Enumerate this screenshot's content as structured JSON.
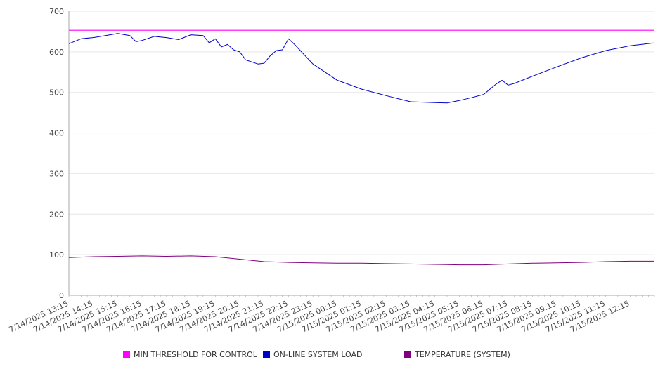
{
  "chart_data": {
    "type": "line",
    "title": "",
    "xlabel": "",
    "ylabel": "",
    "ylim": [
      0,
      700
    ],
    "y_ticks": [
      "0",
      "100",
      "200",
      "300",
      "400",
      "500",
      "600",
      "700"
    ],
    "x_start": "7/14/2025 13:15",
    "x_end": "7/15/2025 13:15",
    "x_tick_labels": [
      "7/14/2025 13:15",
      "7/14/2025 14:15",
      "7/14/2025 15:15",
      "7/14/2025 16:15",
      "7/14/2025 17:15",
      "7/14/2025 18:15",
      "7/14/2025 19:15",
      "7/14/2025 20:15",
      "7/14/2025 21:15",
      "7/14/2025 22:15",
      "7/14/2025 23:15",
      "7/15/2025 00:15",
      "7/15/2025 01:15",
      "7/15/2025 02:15",
      "7/15/2025 03:15",
      "7/15/2025 04:15",
      "7/15/2025 05:15",
      "7/15/2025 06:15",
      "7/15/2025 07:15",
      "7/15/2025 08:15",
      "7/15/2025 09:15",
      "7/15/2025 10:15",
      "7/15/2025 11:15",
      "7/15/2025 12:15"
    ],
    "grid": "horizontal",
    "legend_position": "bottom",
    "series": [
      {
        "name": "MIN THRESHOLD FOR CONTROL",
        "color": "#ff00ff",
        "points": [
          [
            "7/14/2025 13:15",
            653
          ],
          [
            "7/15/2025 13:15",
            653
          ]
        ]
      },
      {
        "name": "ON-LINE SYSTEM LOAD",
        "color": "#0000cc",
        "points": [
          [
            "7/14/2025 13:15",
            620
          ],
          [
            "7/14/2025 13:45",
            632
          ],
          [
            "7/14/2025 14:15",
            635
          ],
          [
            "7/14/2025 14:45",
            640
          ],
          [
            "7/14/2025 15:15",
            645
          ],
          [
            "7/14/2025 15:45",
            640
          ],
          [
            "7/14/2025 16:00",
            625
          ],
          [
            "7/14/2025 16:15",
            628
          ],
          [
            "7/14/2025 16:45",
            638
          ],
          [
            "7/14/2025 17:15",
            635
          ],
          [
            "7/14/2025 17:45",
            630
          ],
          [
            "7/14/2025 18:15",
            642
          ],
          [
            "7/14/2025 18:45",
            640
          ],
          [
            "7/14/2025 19:00",
            622
          ],
          [
            "7/14/2025 19:15",
            632
          ],
          [
            "7/14/2025 19:30",
            612
          ],
          [
            "7/14/2025 19:45",
            618
          ],
          [
            "7/14/2025 20:00",
            605
          ],
          [
            "7/14/2025 20:15",
            600
          ],
          [
            "7/14/2025 20:30",
            580
          ],
          [
            "7/14/2025 20:45",
            575
          ],
          [
            "7/14/2025 21:00",
            570
          ],
          [
            "7/14/2025 21:15",
            572
          ],
          [
            "7/14/2025 21:30",
            590
          ],
          [
            "7/14/2025 21:45",
            603
          ],
          [
            "7/14/2025 22:00",
            605
          ],
          [
            "7/14/2025 22:15",
            632
          ],
          [
            "7/14/2025 22:30",
            618
          ],
          [
            "7/14/2025 23:15",
            570
          ],
          [
            "7/15/2025 00:15",
            530
          ],
          [
            "7/15/2025 01:15",
            508
          ],
          [
            "7/15/2025 02:15",
            492
          ],
          [
            "7/15/2025 03:15",
            477
          ],
          [
            "7/15/2025 04:15",
            475
          ],
          [
            "7/15/2025 04:45",
            474
          ],
          [
            "7/15/2025 05:15",
            480
          ],
          [
            "7/15/2025 05:45",
            487
          ],
          [
            "7/15/2025 06:15",
            495
          ],
          [
            "7/15/2025 06:45",
            520
          ],
          [
            "7/15/2025 07:00",
            530
          ],
          [
            "7/15/2025 07:15",
            518
          ],
          [
            "7/15/2025 07:30",
            522
          ],
          [
            "7/15/2025 08:15",
            540
          ],
          [
            "7/15/2025 09:15",
            563
          ],
          [
            "7/15/2025 10:15",
            585
          ],
          [
            "7/15/2025 11:15",
            603
          ],
          [
            "7/15/2025 12:15",
            615
          ],
          [
            "7/15/2025 13:15",
            622
          ]
        ]
      },
      {
        "name": "TEMPERATURE (SYSTEM)",
        "color": "#800080",
        "points": [
          [
            "7/14/2025 13:15",
            93
          ],
          [
            "7/14/2025 14:15",
            95
          ],
          [
            "7/14/2025 15:15",
            96
          ],
          [
            "7/14/2025 16:15",
            97
          ],
          [
            "7/14/2025 17:15",
            96
          ],
          [
            "7/14/2025 18:15",
            97
          ],
          [
            "7/14/2025 19:15",
            95
          ],
          [
            "7/14/2025 20:15",
            89
          ],
          [
            "7/14/2025 21:15",
            83
          ],
          [
            "7/14/2025 22:15",
            81
          ],
          [
            "7/14/2025 23:15",
            80
          ],
          [
            "7/15/2025 00:15",
            79
          ],
          [
            "7/15/2025 01:15",
            79
          ],
          [
            "7/15/2025 02:15",
            78
          ],
          [
            "7/15/2025 03:15",
            77
          ],
          [
            "7/15/2025 04:15",
            76
          ],
          [
            "7/15/2025 05:15",
            75
          ],
          [
            "7/15/2025 06:15",
            75
          ],
          [
            "7/15/2025 07:15",
            77
          ],
          [
            "7/15/2025 08:15",
            79
          ],
          [
            "7/15/2025 09:15",
            80
          ],
          [
            "7/15/2025 10:15",
            81
          ],
          [
            "7/15/2025 11:15",
            83
          ],
          [
            "7/15/2025 12:15",
            84
          ],
          [
            "7/15/2025 13:15",
            84
          ]
        ]
      }
    ],
    "legend": [
      {
        "label": "MIN THRESHOLD FOR CONTROL",
        "color": "#ff00ff"
      },
      {
        "label": "ON-LINE SYSTEM LOAD",
        "color": "#0000cc"
      },
      {
        "label": "TEMPERATURE (SYSTEM)",
        "color": "#800080"
      }
    ]
  }
}
